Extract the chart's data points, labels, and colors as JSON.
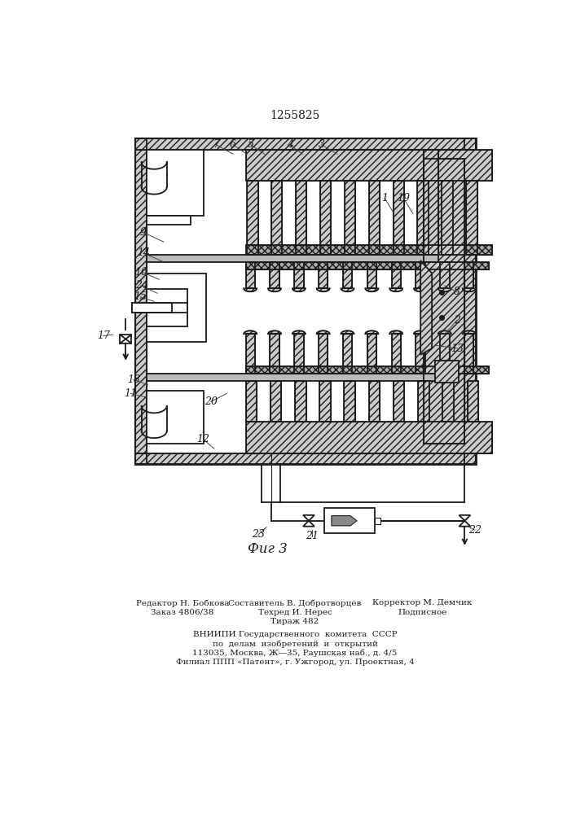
{
  "title": "1255825",
  "bg_color": "#ffffff",
  "line_color": "#1a1a1a",
  "footer_col1": [
    "Редактор Н. Бобкова",
    "Заказ 4806/38"
  ],
  "footer_col2": [
    "Составитель В. Добротворцев",
    "Техред И. Нерес",
    "Тираж 482"
  ],
  "footer_col3": [
    "Корректор М. Демчик",
    "Подписное"
  ],
  "footer_center": [
    "ВНИИПИ Государственного  комитета  СССР",
    "по  делам  изобретений  и  открытий",
    "113035, Москва, Ж—35, Раушская наб., д. 4/5",
    "Филиал ППП «Патент», г. Ужгород, ул. Проектная, 4"
  ],
  "fig_caption": "Фиг 3"
}
